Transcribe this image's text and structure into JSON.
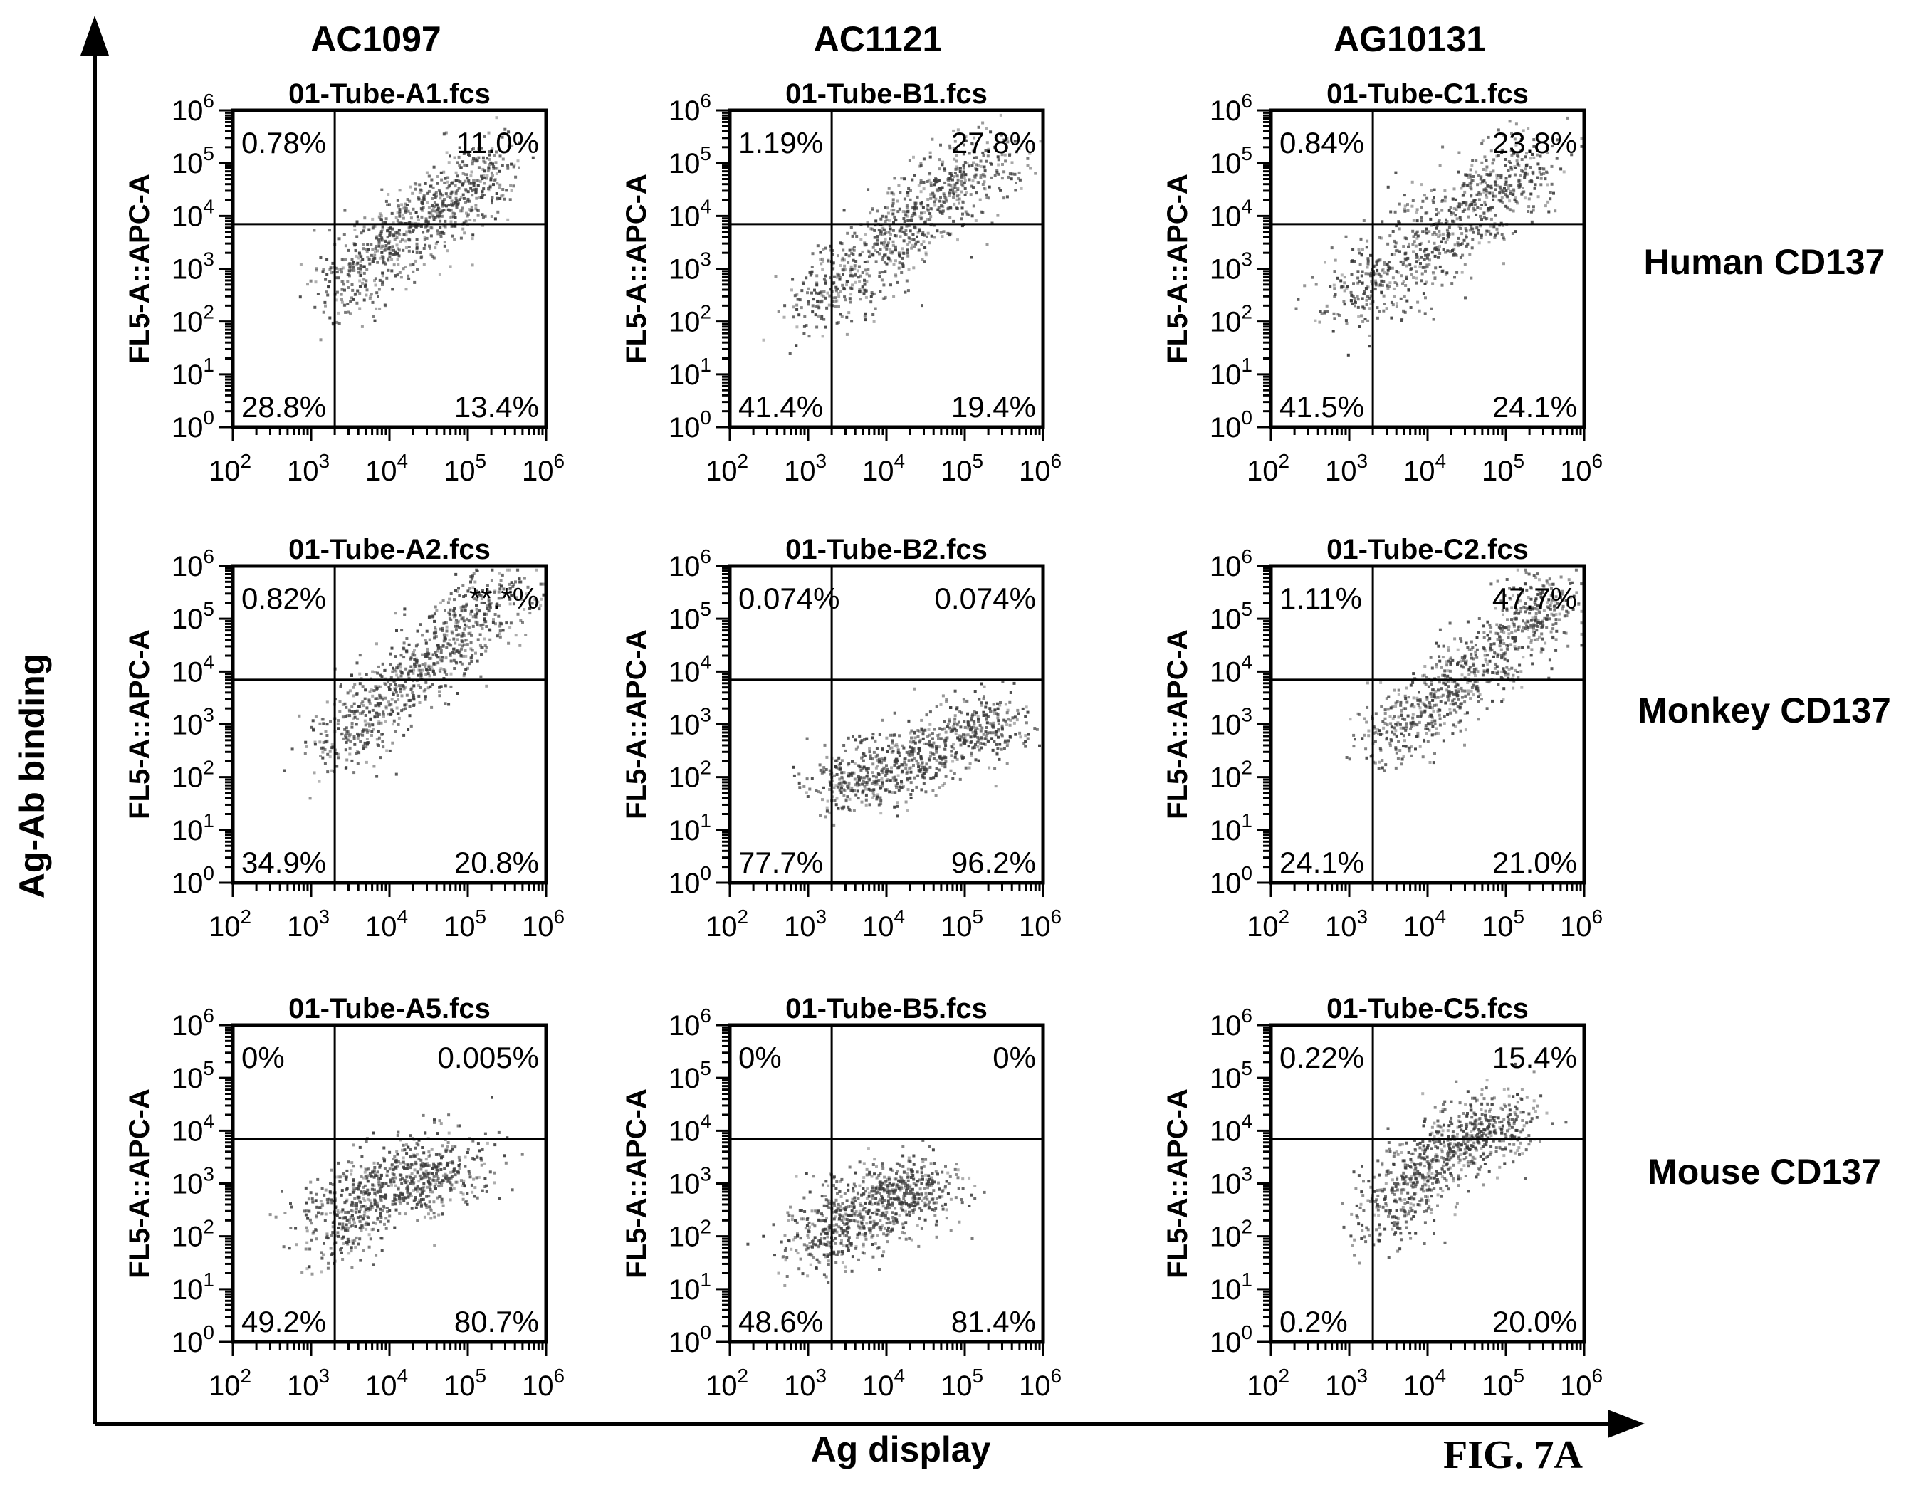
{
  "figure": {
    "label": "FIG. 7A",
    "y_axis_label": "Ag-Ab binding",
    "x_axis_label": "Ag display",
    "columns": [
      "AC1097",
      "AC1121",
      "AG10131"
    ],
    "rows": [
      "Human CD137",
      "Monkey CD137",
      "Mouse CD137"
    ]
  },
  "colors": {
    "ink": "#000000",
    "dots": "#3a3a3a",
    "background": "#ffffff"
  },
  "chart_data": [
    {
      "type": "scatter",
      "title": "01-Tube-A1.fcs",
      "ylabel": "FL5-A::APC-A",
      "x_scale": "log",
      "y_scale": "log",
      "xlim": [
        100,
        1000000
      ],
      "ylim": [
        1,
        1000000
      ],
      "x_ticks": [
        "10",
        "10",
        "10",
        "10",
        "10"
      ],
      "x_tick_exponents": [
        "2",
        "3",
        "4",
        "5",
        "6"
      ],
      "y_ticks": [
        "10",
        "10",
        "10",
        "10",
        "10",
        "10",
        "10"
      ],
      "y_tick_exponents": [
        "0",
        "1",
        "2",
        "3",
        "4",
        "5",
        "6"
      ],
      "quadrant_gate": {
        "x": 2000,
        "y": 7000
      },
      "quadrants": {
        "upper_left": "0.78%",
        "upper_right": "11.0%",
        "lower_left": "28.8%",
        "lower_right": "13.4%"
      },
      "cloud": {
        "log_x": [
          3.3,
          4.0,
          4.7,
          5.3
        ],
        "log_y": [
          2.5,
          3.5,
          4.3,
          5.0
        ],
        "spread": 0.8,
        "n": 800
      }
    },
    {
      "type": "scatter",
      "title": "01-Tube-B1.fcs",
      "ylabel": "FL5-A::APC-A",
      "x_scale": "log",
      "y_scale": "log",
      "xlim": [
        100,
        1000000
      ],
      "ylim": [
        1,
        1000000
      ],
      "x_ticks": [
        "10",
        "10",
        "10",
        "10",
        "10"
      ],
      "x_tick_exponents": [
        "2",
        "3",
        "4",
        "5",
        "6"
      ],
      "y_ticks": [
        "10",
        "10",
        "10",
        "10",
        "10",
        "10",
        "10"
      ],
      "y_tick_exponents": [
        "0",
        "1",
        "2",
        "3",
        "4",
        "5",
        "6"
      ],
      "quadrant_gate": {
        "x": 2000,
        "y": 7000
      },
      "quadrants": {
        "upper_left": "1.19%",
        "upper_right": "27.8%",
        "lower_left": "41.4%",
        "lower_right": "19.4%"
      },
      "cloud": {
        "log_x": [
          3.0,
          3.8,
          4.6,
          5.4
        ],
        "log_y": [
          2.2,
          3.3,
          4.3,
          5.2
        ],
        "spread": 0.8,
        "n": 800
      }
    },
    {
      "type": "scatter",
      "title": "01-Tube-C1.fcs",
      "ylabel": "FL5-A::APC-A",
      "x_scale": "log",
      "y_scale": "log",
      "xlim": [
        100,
        1000000
      ],
      "ylim": [
        1,
        1000000
      ],
      "x_ticks": [
        "10",
        "10",
        "10",
        "10",
        "10"
      ],
      "x_tick_exponents": [
        "2",
        "3",
        "4",
        "5",
        "6"
      ],
      "y_ticks": [
        "10",
        "10",
        "10",
        "10",
        "10",
        "10",
        "10"
      ],
      "y_tick_exponents": [
        "0",
        "1",
        "2",
        "3",
        "4",
        "5",
        "6"
      ],
      "quadrant_gate": {
        "x": 2000,
        "y": 7000
      },
      "quadrants": {
        "upper_left": "0.84%",
        "upper_right": "23.8%",
        "lower_left": "41.5%",
        "lower_right": "24.1%"
      },
      "cloud": {
        "log_x": [
          3.0,
          3.8,
          4.6,
          5.4
        ],
        "log_y": [
          2.3,
          3.3,
          4.3,
          5.1
        ],
        "spread": 0.9,
        "n": 800
      }
    },
    {
      "type": "scatter",
      "title": "01-Tube-A2.fcs",
      "ylabel": "FL5-A::APC-A",
      "x_scale": "log",
      "y_scale": "log",
      "xlim": [
        100,
        1000000
      ],
      "ylim": [
        1,
        1000000
      ],
      "x_ticks": [
        "10",
        "10",
        "10",
        "10",
        "10"
      ],
      "x_tick_exponents": [
        "2",
        "3",
        "4",
        "5",
        "6"
      ],
      "y_ticks": [
        "10",
        "10",
        "10",
        "10",
        "10",
        "10",
        "10"
      ],
      "y_tick_exponents": [
        "0",
        "1",
        "2",
        "3",
        "4",
        "5",
        "6"
      ],
      "quadrant_gate": {
        "x": 2000,
        "y": 7000
      },
      "quadrants": {
        "upper_left": "0.82%",
        "upper_right": "**.*%",
        "lower_left": "34.9%",
        "lower_right": "20.8%"
      },
      "cloud": {
        "log_x": [
          3.2,
          4.0,
          4.8,
          5.5
        ],
        "log_y": [
          2.5,
          3.6,
          4.6,
          5.6
        ],
        "spread": 0.8,
        "n": 800
      }
    },
    {
      "type": "scatter",
      "title": "01-Tube-B2.fcs",
      "ylabel": "FL5-A::APC-A",
      "x_scale": "log",
      "y_scale": "log",
      "xlim": [
        100,
        1000000
      ],
      "ylim": [
        1,
        1000000
      ],
      "x_ticks": [
        "10",
        "10",
        "10",
        "10",
        "10"
      ],
      "x_tick_exponents": [
        "2",
        "3",
        "4",
        "5",
        "6"
      ],
      "y_ticks": [
        "10",
        "10",
        "10",
        "10",
        "10",
        "10",
        "10"
      ],
      "y_tick_exponents": [
        "0",
        "1",
        "2",
        "3",
        "4",
        "5",
        "6"
      ],
      "quadrant_gate": {
        "x": 2000,
        "y": 7000
      },
      "quadrants": {
        "upper_left": "0.074%",
        "upper_right": "0.074%",
        "lower_left": "77.7%",
        "lower_right": "96.2%"
      },
      "cloud": {
        "log_x": [
          3.2,
          4.0,
          4.8,
          5.5
        ],
        "log_y": [
          1.8,
          2.2,
          2.7,
          3.1
        ],
        "spread": 0.8,
        "n": 800
      }
    },
    {
      "type": "scatter",
      "title": "01-Tube-C2.fcs",
      "ylabel": "FL5-A::APC-A",
      "x_scale": "log",
      "y_scale": "log",
      "xlim": [
        100,
        1000000
      ],
      "ylim": [
        1,
        1000000
      ],
      "x_ticks": [
        "10",
        "10",
        "10",
        "10",
        "10"
      ],
      "x_tick_exponents": [
        "2",
        "3",
        "4",
        "5",
        "6"
      ],
      "y_ticks": [
        "10",
        "10",
        "10",
        "10",
        "10",
        "10",
        "10"
      ],
      "y_tick_exponents": [
        "0",
        "1",
        "2",
        "3",
        "4",
        "5",
        "6"
      ],
      "quadrant_gate": {
        "x": 2000,
        "y": 7000
      },
      "quadrants": {
        "upper_left": "1.11%",
        "upper_right": "47.7%",
        "lower_left": "24.1%",
        "lower_right": "21.0%"
      },
      "cloud": {
        "log_x": [
          3.4,
          4.2,
          5.0,
          5.6
        ],
        "log_y": [
          2.6,
          3.6,
          4.6,
          5.5
        ],
        "spread": 0.8,
        "n": 800
      }
    },
    {
      "type": "scatter",
      "title": "01-Tube-A5.fcs",
      "ylabel": "FL5-A::APC-A",
      "x_scale": "log",
      "y_scale": "log",
      "xlim": [
        100,
        1000000
      ],
      "ylim": [
        1,
        1000000
      ],
      "x_ticks": [
        "10",
        "10",
        "10",
        "10",
        "10"
      ],
      "x_tick_exponents": [
        "2",
        "3",
        "4",
        "5",
        "6"
      ],
      "y_ticks": [
        "10",
        "10",
        "10",
        "10",
        "10",
        "10",
        "10"
      ],
      "y_tick_exponents": [
        "0",
        "1",
        "2",
        "3",
        "4",
        "5",
        "6"
      ],
      "quadrant_gate": {
        "x": 2000,
        "y": 7000
      },
      "quadrants": {
        "upper_left": "0%",
        "upper_right": "0.005%",
        "lower_left": "49.2%",
        "lower_right": "80.7%"
      },
      "cloud": {
        "log_x": [
          3.1,
          3.7,
          4.3,
          5.0
        ],
        "log_y": [
          2.0,
          2.8,
          3.2,
          3.4
        ],
        "spread": 0.9,
        "n": 800
      }
    },
    {
      "type": "scatter",
      "title": "01-Tube-B5.fcs",
      "ylabel": "FL5-A::APC-A",
      "x_scale": "log",
      "y_scale": "log",
      "xlim": [
        100,
        1000000
      ],
      "ylim": [
        1,
        1000000
      ],
      "x_ticks": [
        "10",
        "10",
        "10",
        "10",
        "10"
      ],
      "x_tick_exponents": [
        "2",
        "3",
        "4",
        "5",
        "6"
      ],
      "y_ticks": [
        "10",
        "10",
        "10",
        "10",
        "10",
        "10",
        "10"
      ],
      "y_tick_exponents": [
        "0",
        "1",
        "2",
        "3",
        "4",
        "5",
        "6"
      ],
      "quadrant_gate": {
        "x": 2000,
        "y": 7000
      },
      "quadrants": {
        "upper_left": "0%",
        "upper_right": "0%",
        "lower_left": "48.6%",
        "lower_right": "81.4%"
      },
      "cloud": {
        "log_x": [
          3.0,
          3.5,
          4.0,
          4.7
        ],
        "log_y": [
          1.8,
          2.3,
          2.8,
          3.0
        ],
        "spread": 0.8,
        "n": 800
      }
    },
    {
      "type": "scatter",
      "title": "01-Tube-C5.fcs",
      "ylabel": "FL5-A::APC-A",
      "x_scale": "log",
      "y_scale": "log",
      "xlim": [
        100,
        1000000
      ],
      "ylim": [
        1,
        1000000
      ],
      "x_ticks": [
        "10",
        "10",
        "10",
        "10",
        "10"
      ],
      "x_tick_exponents": [
        "2",
        "3",
        "4",
        "5",
        "6"
      ],
      "y_ticks": [
        "10",
        "10",
        "10",
        "10",
        "10",
        "10",
        "10"
      ],
      "y_tick_exponents": [
        "0",
        "1",
        "2",
        "3",
        "4",
        "5",
        "6"
      ],
      "quadrant_gate": {
        "x": 2000,
        "y": 7000
      },
      "quadrants": {
        "upper_left": "0.22%",
        "upper_right": "15.4%",
        "lower_left": "0.2%",
        "lower_right": "20.0%"
      },
      "cloud": {
        "log_x": [
          3.3,
          3.9,
          4.5,
          5.1
        ],
        "log_y": [
          2.2,
          3.2,
          3.9,
          4.2
        ],
        "spread": 0.8,
        "n": 800
      }
    }
  ]
}
